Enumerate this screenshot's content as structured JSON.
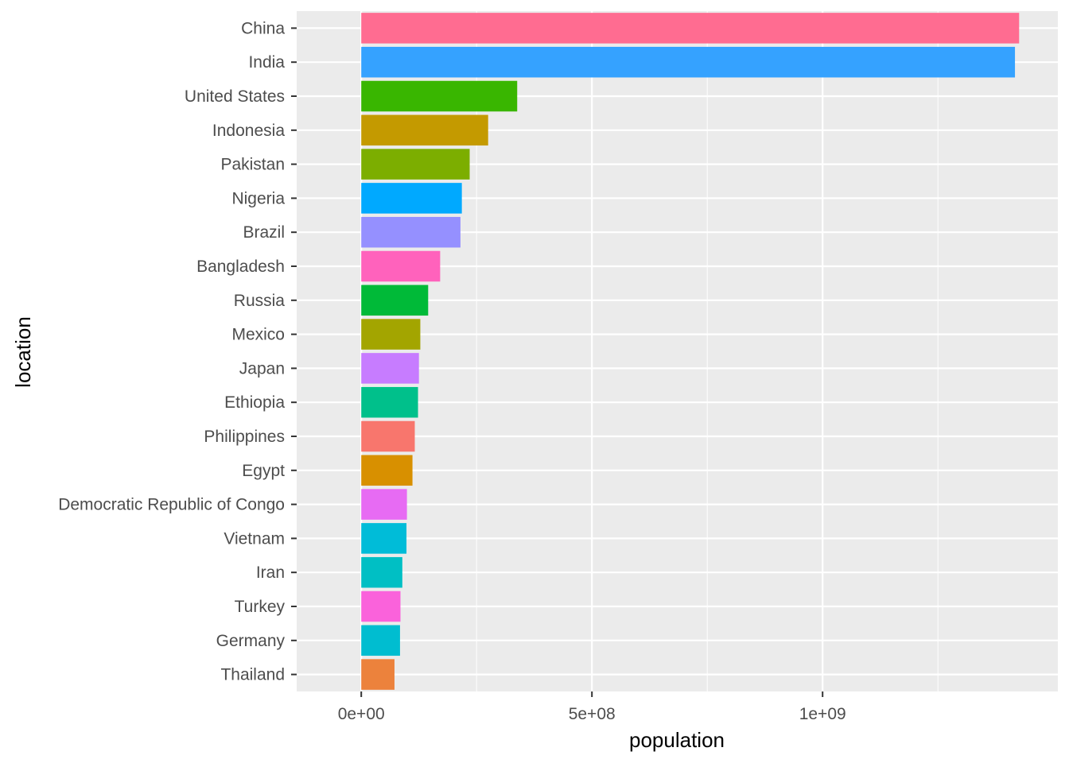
{
  "chart_data": {
    "type": "bar",
    "orientation": "horizontal",
    "xlabel": "population",
    "ylabel": "location",
    "xlim": [
      -140000000,
      1510000000
    ],
    "x_ticks": [
      {
        "value": 0,
        "label": "0e+00"
      },
      {
        "value": 500000000,
        "label": "5e+08"
      },
      {
        "value": 1000000000,
        "label": "1e+09"
      }
    ],
    "x_minor_ticks": [
      250000000,
      750000000,
      1250000000
    ],
    "grid": true,
    "legend": "none",
    "background_color": "#ebebeb",
    "grid_color": "#ffffff",
    "categories": [
      "China",
      "India",
      "United States",
      "Indonesia",
      "Pakistan",
      "Nigeria",
      "Brazil",
      "Bangladesh",
      "Russia",
      "Mexico",
      "Japan",
      "Ethiopia",
      "Philippines",
      "Egypt",
      "Democratic Republic of Congo",
      "Vietnam",
      "Iran",
      "Turkey",
      "Germany",
      "Thailand"
    ],
    "values": [
      1426000000,
      1417000000,
      338000000,
      275000000,
      235000000,
      218000000,
      215000000,
      171000000,
      145000000,
      128000000,
      125000000,
      123000000,
      116000000,
      111000000,
      99000000,
      98000000,
      89000000,
      85000000,
      84000000,
      72000000
    ],
    "colors": [
      "#FF6C91",
      "#35A2FF",
      "#39B600",
      "#C49A00",
      "#7CAE00",
      "#00A9FF",
      "#9590FF",
      "#FF62BC",
      "#00BA38",
      "#A3A500",
      "#C77CFF",
      "#00C08B",
      "#F8766D",
      "#D89000",
      "#E76BF3",
      "#00BCD8",
      "#00BFC4",
      "#FA62DB",
      "#00BDD0",
      "#EC823C"
    ]
  }
}
